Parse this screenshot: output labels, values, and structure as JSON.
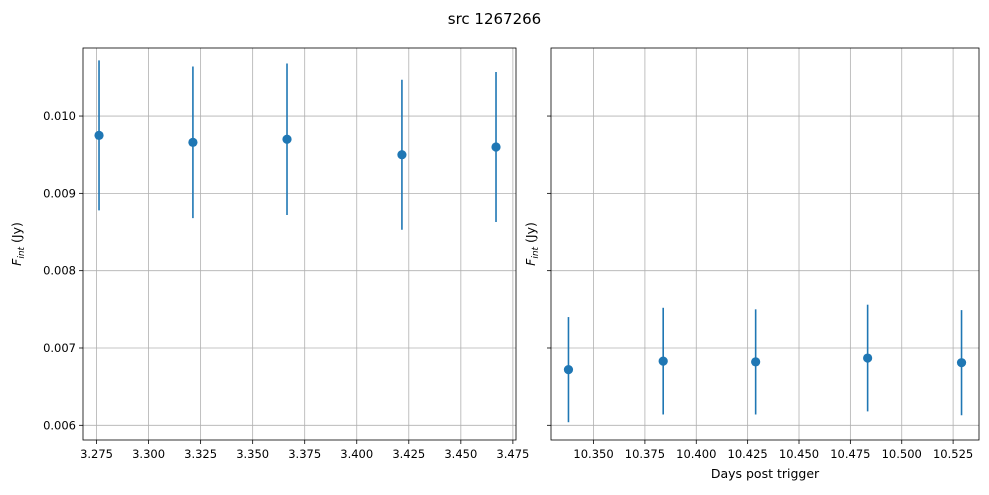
{
  "chart_data": {
    "title": "src 1267266",
    "panels": [
      {
        "type": "scatter",
        "errorbars": true,
        "ylabel_base": "F",
        "ylabel_sub": "int",
        "ylabel_unit": " (Jy)",
        "xlabel": "",
        "xlim": [
          3.2685,
          3.4765
        ],
        "ylim": [
          0.00581,
          0.01088
        ],
        "xticks": [
          3.275,
          3.3,
          3.325,
          3.35,
          3.375,
          3.4,
          3.425,
          3.45,
          3.475
        ],
        "xtick_labels": [
          "3.275",
          "3.300",
          "3.325",
          "3.350",
          "3.375",
          "3.400",
          "3.425",
          "3.450",
          "3.475"
        ],
        "yticks": [
          0.006,
          0.007,
          0.008,
          0.009,
          0.01
        ],
        "ytick_labels": [
          "0.006",
          "0.007",
          "0.008",
          "0.009",
          "0.010"
        ],
        "show_ytick_labels": true,
        "grid": true,
        "color": "#1f77b4",
        "x": [
          3.2762,
          3.3213,
          3.3665,
          3.4217,
          3.4669
        ],
        "y": [
          0.00975,
          0.00966,
          0.0097,
          0.0095,
          0.0096
        ],
        "yerr": [
          0.00097,
          0.00098,
          0.00098,
          0.00097,
          0.00097
        ]
      },
      {
        "type": "scatter",
        "errorbars": true,
        "ylabel_base": "F",
        "ylabel_sub": "int",
        "ylabel_unit": " (Jy)",
        "xlabel": "Days post trigger",
        "xlim": [
          10.3293,
          10.5376
        ],
        "ylim": [
          0.00581,
          0.01088
        ],
        "xticks": [
          10.35,
          10.375,
          10.4,
          10.425,
          10.45,
          10.475,
          10.5,
          10.525
        ],
        "xtick_labels": [
          "10.350",
          "10.375",
          "10.400",
          "10.425",
          "10.450",
          "10.475",
          "10.500",
          "10.525"
        ],
        "yticks": [
          0.006,
          0.007,
          0.008,
          0.009,
          0.01
        ],
        "show_ytick_labels": false,
        "grid": true,
        "color": "#1f77b4",
        "x": [
          10.3378,
          10.3839,
          10.4289,
          10.4834,
          10.5291
        ],
        "y": [
          0.00672,
          0.00683,
          0.00682,
          0.00687,
          0.00681
        ],
        "yerr": [
          0.00068,
          0.00069,
          0.00068,
          0.00069,
          0.00068
        ]
      }
    ]
  }
}
